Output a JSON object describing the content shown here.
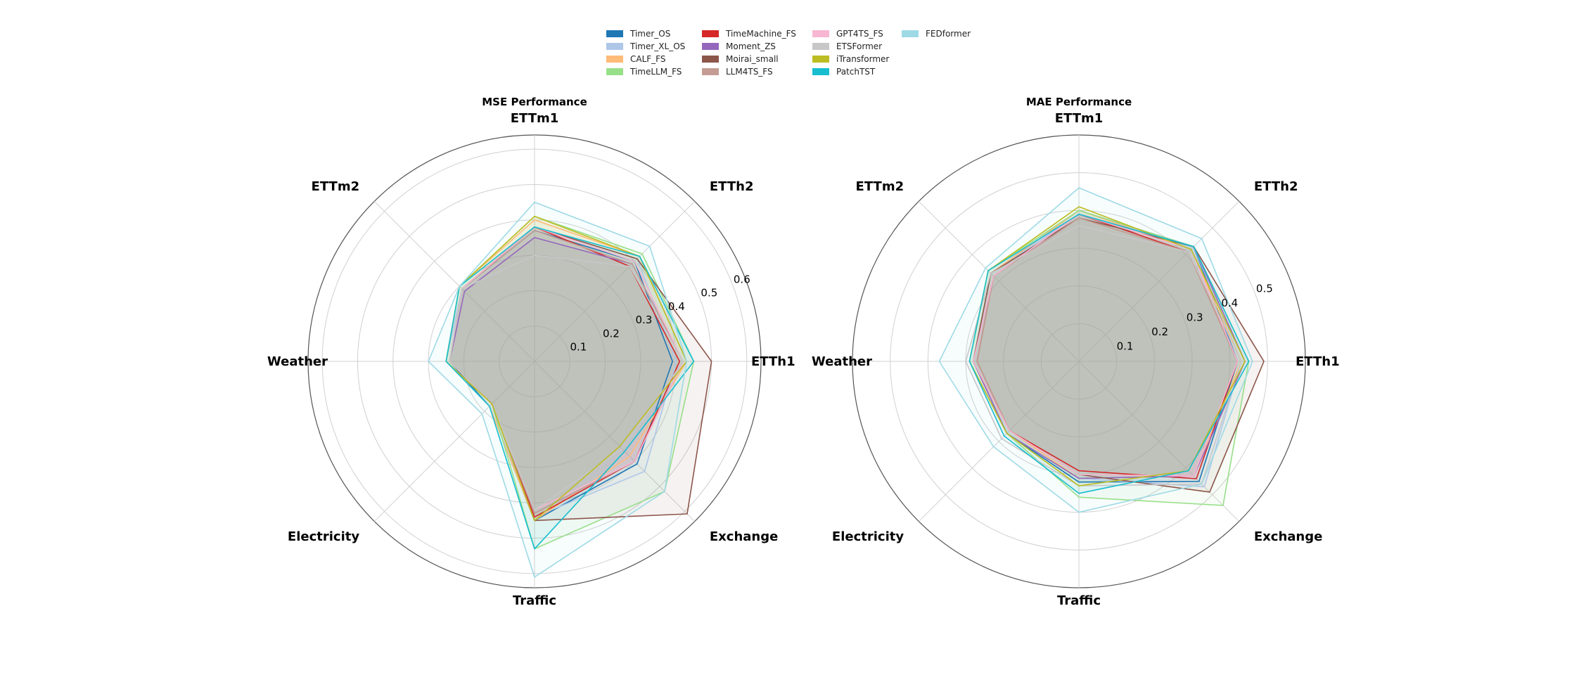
{
  "legend": {
    "entries": [
      {
        "name": "Timer_OS",
        "color": "#1f77b4"
      },
      {
        "name": "Timer_XL_OS",
        "color": "#aec7e8"
      },
      {
        "name": "CALF_FS",
        "color": "#ffbb78"
      },
      {
        "name": "TimeLLM_FS",
        "color": "#98df8a"
      },
      {
        "name": "TimeMachine_FS",
        "color": "#d62728"
      },
      {
        "name": "Moment_ZS",
        "color": "#9467bd"
      },
      {
        "name": "Moirai_small",
        "color": "#8c564b"
      },
      {
        "name": "LLM4TS_FS",
        "color": "#c49c94"
      },
      {
        "name": "GPT4TS_FS",
        "color": "#f7b6d2"
      },
      {
        "name": "ETSFormer",
        "color": "#c7c7c7"
      },
      {
        "name": "iTransformer",
        "color": "#bcbd22"
      },
      {
        "name": "PatchTST",
        "color": "#17becf"
      },
      {
        "name": "FEDformer",
        "color": "#9edae5"
      }
    ]
  },
  "chart_data": [
    {
      "type": "radar",
      "title": "MSE Performance",
      "axes": [
        "ETTh1",
        "ETTh2",
        "ETTm1",
        "ETTm2",
        "Weather",
        "Electricity",
        "Traffic",
        "Exchange"
      ],
      "rlim": [
        0,
        0.64
      ],
      "rticks": [
        0.1,
        0.2,
        0.3,
        0.4,
        0.5,
        0.6
      ],
      "grid": true,
      "series": [
        {
          "name": "Timer_OS",
          "color": "#1f77b4",
          "values": [
            0.39,
            0.4,
            0.37,
            0.29,
            0.24,
            0.18,
            0.45,
            0.41
          ]
        },
        {
          "name": "Timer_XL_OS",
          "color": "#aec7e8",
          "values": [
            0.4,
            0.41,
            0.38,
            0.29,
            0.25,
            0.18,
            0.44,
            0.44
          ]
        },
        {
          "name": "CALF_FS",
          "color": "#ffbb78",
          "values": [
            0.43,
            0.42,
            0.4,
            0.3,
            0.25,
            0.18,
            0.45,
            0.38
          ]
        },
        {
          "name": "TimeLLM_FS",
          "color": "#98df8a",
          "values": [
            0.45,
            0.43,
            0.41,
            0.3,
            0.25,
            0.17,
            0.53,
            0.52
          ]
        },
        {
          "name": "TimeMachine_FS",
          "color": "#d62728",
          "values": [
            0.41,
            0.38,
            0.38,
            0.29,
            0.24,
            0.17,
            0.44,
            0.4
          ]
        },
        {
          "name": "Moment_ZS",
          "color": "#9467bd",
          "values": [
            0.42,
            0.39,
            0.35,
            0.28,
            0.24,
            0.17,
            0.43,
            0.4
          ]
        },
        {
          "name": "Moirai_small",
          "color": "#8c564b",
          "values": [
            0.5,
            0.41,
            0.38,
            0.29,
            0.24,
            0.17,
            0.45,
            0.61
          ]
        },
        {
          "name": "LLM4TS_FS",
          "color": "#c49c94",
          "values": [
            0.42,
            0.39,
            0.37,
            0.29,
            0.24,
            0.17,
            0.43,
            0.4
          ]
        },
        {
          "name": "GPT4TS_FS",
          "color": "#f7b6d2",
          "values": [
            0.42,
            0.4,
            0.38,
            0.29,
            0.24,
            0.17,
            0.42,
            0.4
          ]
        },
        {
          "name": "ETSFormer",
          "color": "#c7c7c7",
          "values": [
            0.42,
            0.38,
            0.3,
            0.29,
            0.24,
            0.17,
            0.42,
            0.35
          ]
        },
        {
          "name": "iTransformer",
          "color": "#bcbd22",
          "values": [
            0.43,
            0.42,
            0.41,
            0.3,
            0.25,
            0.17,
            0.45,
            0.34
          ]
        },
        {
          "name": "PatchTST",
          "color": "#17becf",
          "values": [
            0.45,
            0.42,
            0.38,
            0.3,
            0.25,
            0.18,
            0.53,
            0.36
          ]
        },
        {
          "name": "FEDformer",
          "color": "#9edae5",
          "values": [
            0.43,
            0.46,
            0.45,
            0.3,
            0.3,
            0.21,
            0.61,
            0.52
          ]
        }
      ]
    },
    {
      "type": "radar",
      "title": "MAE Performance",
      "axes": [
        "ETTh1",
        "ETTh2",
        "ETTm1",
        "ETTm2",
        "Weather",
        "Electricity",
        "Traffic",
        "Exchange"
      ],
      "rlim": [
        0,
        0.6
      ],
      "rticks": [
        0.1,
        0.2,
        0.3,
        0.4,
        0.5
      ],
      "grid": true,
      "series": [
        {
          "name": "Timer_OS",
          "color": "#1f77b4",
          "values": [
            0.42,
            0.43,
            0.4,
            0.33,
            0.28,
            0.27,
            0.32,
            0.45
          ]
        },
        {
          "name": "Timer_XL_OS",
          "color": "#aec7e8",
          "values": [
            0.43,
            0.43,
            0.39,
            0.33,
            0.28,
            0.27,
            0.31,
            0.47
          ]
        },
        {
          "name": "CALF_FS",
          "color": "#ffbb78",
          "values": [
            0.43,
            0.42,
            0.4,
            0.33,
            0.28,
            0.26,
            0.31,
            0.43
          ]
        },
        {
          "name": "TimeLLM_FS",
          "color": "#98df8a",
          "values": [
            0.45,
            0.43,
            0.4,
            0.34,
            0.29,
            0.27,
            0.36,
            0.54
          ]
        },
        {
          "name": "TimeMachine_FS",
          "color": "#d62728",
          "values": [
            0.42,
            0.41,
            0.39,
            0.32,
            0.27,
            0.26,
            0.29,
            0.44
          ]
        },
        {
          "name": "Moment_ZS",
          "color": "#9467bd",
          "values": [
            0.44,
            0.43,
            0.39,
            0.32,
            0.28,
            0.27,
            0.31,
            0.43
          ]
        },
        {
          "name": "Moirai_small",
          "color": "#8c564b",
          "values": [
            0.49,
            0.43,
            0.38,
            0.33,
            0.28,
            0.26,
            0.3,
            0.49
          ]
        },
        {
          "name": "LLM4TS_FS",
          "color": "#c49c94",
          "values": [
            0.42,
            0.41,
            0.38,
            0.32,
            0.27,
            0.26,
            0.3,
            0.43
          ]
        },
        {
          "name": "GPT4TS_FS",
          "color": "#f7b6d2",
          "values": [
            0.42,
            0.42,
            0.39,
            0.32,
            0.28,
            0.26,
            0.3,
            0.43
          ]
        },
        {
          "name": "ETSFormer",
          "color": "#c7c7c7",
          "values": [
            0.43,
            0.41,
            0.36,
            0.33,
            0.3,
            0.29,
            0.33,
            0.46
          ]
        },
        {
          "name": "iTransformer",
          "color": "#bcbd22",
          "values": [
            0.44,
            0.42,
            0.41,
            0.34,
            0.29,
            0.27,
            0.33,
            0.41
          ]
        },
        {
          "name": "PatchTST",
          "color": "#17becf",
          "values": [
            0.45,
            0.43,
            0.39,
            0.34,
            0.29,
            0.28,
            0.35,
            0.41
          ]
        },
        {
          "name": "FEDformer",
          "color": "#9edae5",
          "values": [
            0.46,
            0.46,
            0.46,
            0.35,
            0.37,
            0.32,
            0.4,
            0.46
          ]
        }
      ]
    }
  ]
}
